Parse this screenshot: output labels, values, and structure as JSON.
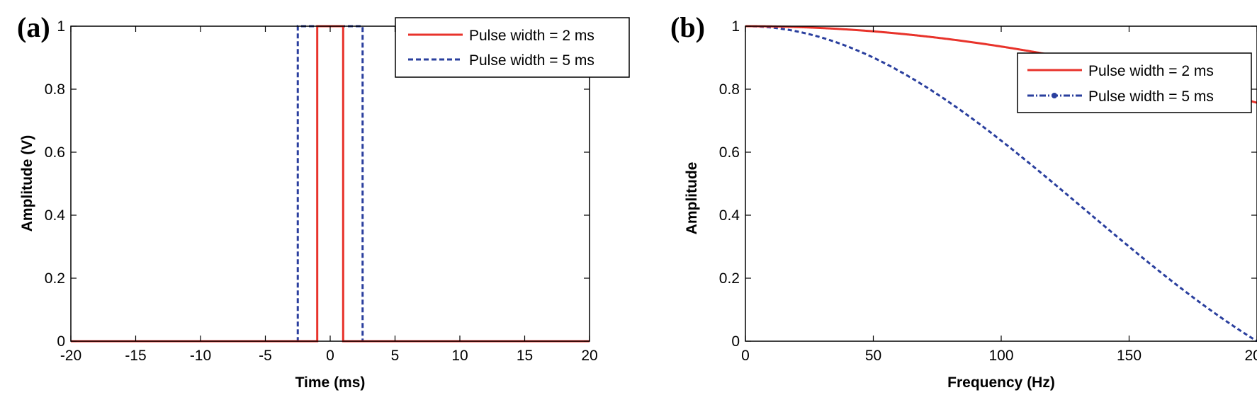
{
  "chart_data": [
    {
      "type": "line",
      "panel_label": "(a)",
      "title": "",
      "xlabel": "Time (ms)",
      "ylabel": "Amplitude (V)",
      "xlim": [
        -20,
        20
      ],
      "ylim": [
        0,
        1
      ],
      "xticks": [
        -20,
        -15,
        -10,
        -5,
        0,
        5,
        10,
        15,
        20
      ],
      "yticks": [
        0,
        0.2,
        0.4,
        0.6,
        0.8,
        1
      ],
      "xtick_labels": [
        "-20",
        "-15",
        "-10",
        "-5",
        "0",
        "5",
        "10",
        "15",
        "20"
      ],
      "ytick_labels": [
        "0",
        "0.2",
        "0.4",
        "0.6",
        "0.8",
        "1"
      ],
      "legend_position": "top-right",
      "grid": false,
      "series": [
        {
          "name": "Pulse width = 2 ms",
          "color": "#e8332b",
          "style": "solid",
          "x": [
            -20,
            -1,
            -1,
            1,
            1,
            20
          ],
          "y": [
            0,
            0,
            1,
            1,
            0,
            0
          ]
        },
        {
          "name": "Pulse width = 5 ms",
          "color": "#2a3f9e",
          "style": "dashed",
          "x": [
            -20,
            -2.5,
            -2.5,
            2.5,
            2.5,
            20
          ],
          "y": [
            0,
            0,
            1,
            1,
            0,
            0
          ]
        }
      ]
    },
    {
      "type": "line",
      "panel_label": "(b)",
      "title": "",
      "xlabel": "Frequency (Hz)",
      "ylabel": "Amplitude",
      "xlim": [
        0,
        200
      ],
      "ylim": [
        0,
        1
      ],
      "xticks": [
        0,
        50,
        100,
        150,
        200
      ],
      "yticks": [
        0,
        0.2,
        0.4,
        0.6,
        0.8,
        1
      ],
      "xtick_labels": [
        "0",
        "50",
        "100",
        "150",
        "200"
      ],
      "ytick_labels": [
        "0",
        "0.2",
        "0.4",
        "0.6",
        "0.8",
        "1"
      ],
      "legend_position": "top-right",
      "grid": false,
      "series": [
        {
          "name": "Pulse width = 2 ms",
          "color": "#e8332b",
          "style": "solid",
          "pulse_width_ms": 2
        },
        {
          "name": "Pulse width = 5 ms",
          "color": "#2a3f9e",
          "style": "dash-dot-marker",
          "pulse_width_ms": 5
        }
      ]
    }
  ]
}
